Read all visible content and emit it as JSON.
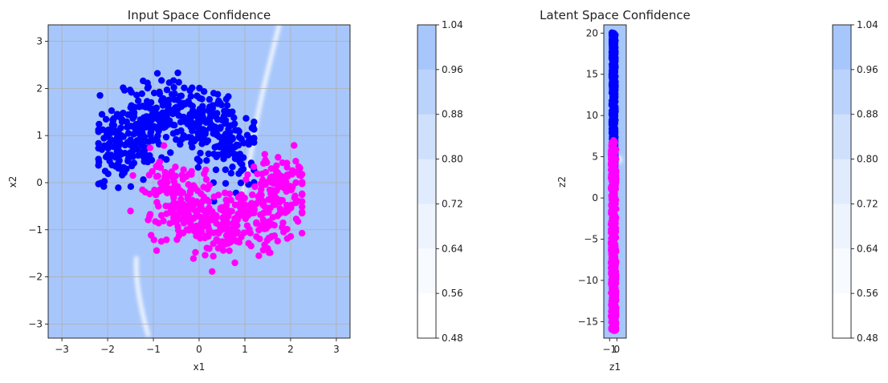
{
  "chart_data": [
    {
      "type": "scatter",
      "title": "Input Space Confidence",
      "xlabel": "x1",
      "ylabel": "x2",
      "xlim": [
        -3.3,
        3.3
      ],
      "ylim": [
        -3.3,
        3.35
      ],
      "xticks": [
        -3,
        -2,
        -1,
        0,
        1,
        2,
        3
      ],
      "yticks": [
        -3,
        -2,
        -1,
        0,
        1,
        2,
        3
      ],
      "grid": true,
      "background_color": "#a7c6fb",
      "boundary_color": "#ffffff",
      "series": [
        {
          "color": "#0000ff",
          "shape": "moon_upper",
          "count": 500,
          "x_range": [
            -2.2,
            1.2
          ],
          "y_range": [
            -1.0,
            2.33
          ]
        },
        {
          "color": "#ff00ff",
          "shape": "moon_lower",
          "count": 500,
          "x_range": [
            -1.5,
            2.25
          ],
          "y_range": [
            -2.3,
            1.2
          ]
        }
      ]
    },
    {
      "type": "scatter",
      "title": "Latent Space Confidence",
      "xlabel": "z1",
      "ylabel": "z2",
      "xlim": [
        -1.8,
        1.3
      ],
      "ylim": [
        -17,
        21
      ],
      "xticks": [
        -1,
        0
      ],
      "xtick_labels": [
        "−1",
        "0"
      ],
      "yticks": [
        -15,
        -10,
        -5,
        0,
        5,
        10,
        15,
        20
      ],
      "grid": false,
      "background_color": "#a7c6fb",
      "series": [
        {
          "color": "#0000ff",
          "count": 500,
          "x_range": [
            -0.7,
            -0.2
          ],
          "y_range": [
            3.5,
            20.1
          ]
        },
        {
          "color": "#ff00ff",
          "count": 500,
          "x_range": [
            -0.8,
            -0.1
          ],
          "y_range": [
            -16.1,
            7.1
          ]
        }
      ]
    }
  ],
  "colorbars": [
    {
      "ticks": [
        "1.04",
        "0.96",
        "0.88",
        "0.80",
        "0.72",
        "0.64",
        "0.56",
        "0.48"
      ],
      "colors": [
        "#a7c6fb",
        "#bad3fc",
        "#cfe0fd",
        "#e1ebfe",
        "#eef4fe",
        "#f7faff",
        "#ffffff"
      ]
    },
    {
      "ticks": [
        "1.04",
        "0.96",
        "0.88",
        "0.80",
        "0.72",
        "0.64",
        "0.56",
        "0.48"
      ],
      "colors": [
        "#a7c6fb",
        "#bad3fc",
        "#cfe0fd",
        "#e1ebfe",
        "#eef4fe",
        "#f7faff",
        "#ffffff"
      ]
    }
  ]
}
